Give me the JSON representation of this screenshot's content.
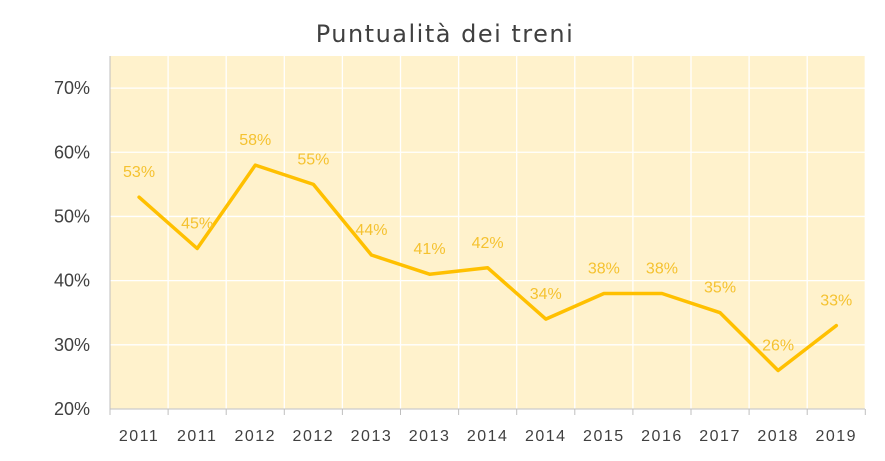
{
  "chart_data": {
    "type": "line",
    "title": "Puntualità dei treni",
    "xlabel": "",
    "ylabel": "",
    "categories": [
      "2011",
      "2011",
      "2012",
      "2012",
      "2013",
      "2013",
      "2014",
      "2014",
      "2015",
      "2016",
      "2017",
      "2018",
      "2019"
    ],
    "series": [
      {
        "values": [
          53,
          45,
          58,
          55,
          44,
          41,
          42,
          34,
          38,
          38,
          35,
          26,
          33
        ]
      }
    ],
    "data_labels": [
      "53%",
      "45%",
      "58%",
      "55%",
      "44%",
      "41%",
      "42%",
      "34%",
      "38%",
      "38%",
      "35%",
      "26%",
      "33%"
    ],
    "y_ticks": [
      20,
      30,
      40,
      50,
      60,
      70
    ],
    "y_tick_labels": [
      "20%",
      "30%",
      "40%",
      "50%",
      "60%",
      "70%"
    ],
    "ylim": [
      20,
      70
    ],
    "grid": true,
    "legend": "none",
    "colors": {
      "line": "#FFC000",
      "label": "#F5C230",
      "plot_background": "#FFF2CC",
      "gridline": "#FFFFFF",
      "axis": "#BFBFBF",
      "text": "#404040"
    }
  }
}
